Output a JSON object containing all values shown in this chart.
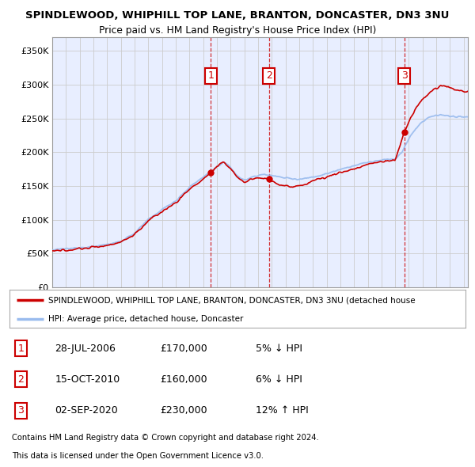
{
  "title": "SPINDLEWOOD, WHIPHILL TOP LANE, BRANTON, DONCASTER, DN3 3NU",
  "subtitle": "Price paid vs. HM Land Registry's House Price Index (HPI)",
  "legend_label_red": "SPINDLEWOOD, WHIPHILL TOP LANE, BRANTON, DONCASTER, DN3 3NU (detached house",
  "legend_label_blue": "HPI: Average price, detached house, Doncaster",
  "footer1": "Contains HM Land Registry data © Crown copyright and database right 2024.",
  "footer2": "This data is licensed under the Open Government Licence v3.0.",
  "sales": [
    {
      "num": 1,
      "date": "28-JUL-2006",
      "price": "£170,000",
      "pct": "5%",
      "dir": "↓",
      "label": "HPI"
    },
    {
      "num": 2,
      "date": "15-OCT-2010",
      "price": "£160,000",
      "pct": "6%",
      "dir": "↓",
      "label": "HPI"
    },
    {
      "num": 3,
      "date": "02-SEP-2020",
      "price": "£230,000",
      "pct": "12%",
      "dir": "↑",
      "label": "HPI"
    }
  ],
  "sale_years": [
    2006.57,
    2010.79,
    2020.67
  ],
  "sale_values": [
    170000,
    160000,
    230000
  ],
  "ylim": [
    0,
    370000
  ],
  "yticks": [
    0,
    50000,
    100000,
    150000,
    200000,
    250000,
    300000,
    350000
  ],
  "ytick_labels": [
    "£0",
    "£50K",
    "£100K",
    "£150K",
    "£200K",
    "£250K",
    "£300K",
    "£350K"
  ],
  "xlim": [
    1995,
    2025.3
  ],
  "background_color": "#ffffff",
  "plot_bg_color": "#e8eeff",
  "grid_color": "#cccccc",
  "red_color": "#cc0000",
  "blue_color": "#99bbee"
}
